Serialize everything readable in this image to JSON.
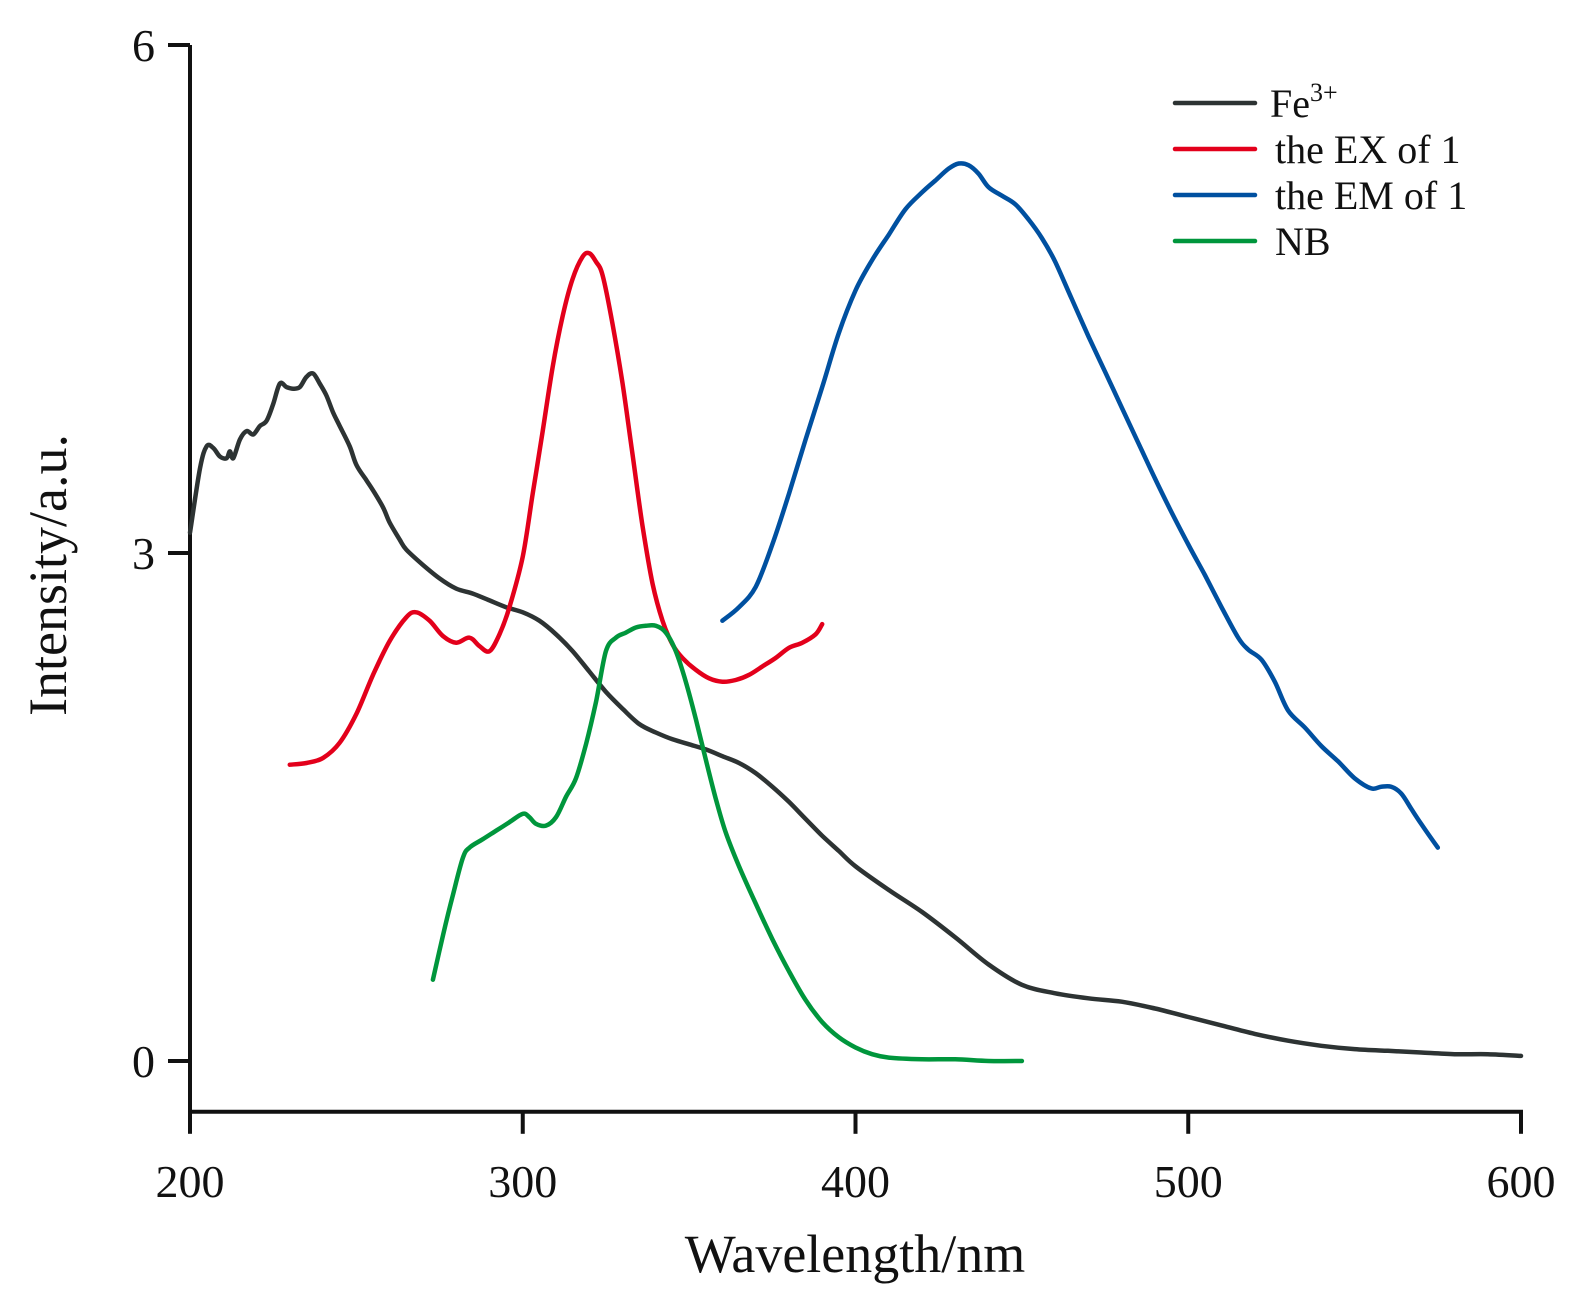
{
  "chart_data": {
    "type": "line",
    "title": "",
    "xlabel": "Wavelength/nm",
    "ylabel": "Intensity/a.u.",
    "xlim": [
      200,
      600
    ],
    "ylim": [
      -0.3,
      6
    ],
    "xticks": [
      200,
      300,
      400,
      500,
      600
    ],
    "xtick_labels": [
      "200",
      "300",
      "400",
      "500",
      "600"
    ],
    "yticks": [
      0,
      3,
      6
    ],
    "ytick_labels": [
      "0",
      "3",
      "6"
    ],
    "grid": false,
    "legend_position": "top-right",
    "series": [
      {
        "name": "Fe3+",
        "label_main": "Fe",
        "label_sup": "3+",
        "color": "#2d3333",
        "x": [
          200,
          203,
          205,
          207,
          209,
          211,
          212,
          213,
          215,
          217,
          219,
          221,
          223,
          225,
          227,
          229,
          231,
          233,
          235,
          237,
          239,
          241,
          243,
          245,
          248,
          250,
          253,
          255,
          258,
          260,
          263,
          265,
          270,
          275,
          280,
          285,
          290,
          295,
          300,
          305,
          310,
          315,
          320,
          325,
          330,
          335,
          340,
          345,
          350,
          355,
          360,
          365,
          370,
          375,
          380,
          385,
          390,
          395,
          400,
          410,
          420,
          430,
          440,
          450,
          460,
          470,
          480,
          490,
          500,
          510,
          520,
          530,
          540,
          550,
          560,
          570,
          580,
          590,
          600
        ],
        "y": [
          3.12,
          3.5,
          3.63,
          3.62,
          3.57,
          3.56,
          3.6,
          3.56,
          3.67,
          3.72,
          3.7,
          3.75,
          3.78,
          3.88,
          4.0,
          3.98,
          3.97,
          3.98,
          4.04,
          4.06,
          4.0,
          3.93,
          3.83,
          3.75,
          3.63,
          3.52,
          3.43,
          3.37,
          3.27,
          3.18,
          3.08,
          3.02,
          2.93,
          2.85,
          2.79,
          2.76,
          2.72,
          2.68,
          2.65,
          2.6,
          2.52,
          2.42,
          2.3,
          2.18,
          2.08,
          1.99,
          1.94,
          1.9,
          1.87,
          1.84,
          1.8,
          1.76,
          1.7,
          1.62,
          1.53,
          1.43,
          1.33,
          1.24,
          1.15,
          1.01,
          0.88,
          0.73,
          0.57,
          0.45,
          0.4,
          0.37,
          0.35,
          0.31,
          0.26,
          0.21,
          0.16,
          0.12,
          0.09,
          0.07,
          0.06,
          0.05,
          0.04,
          0.04,
          0.03
        ]
      },
      {
        "name": "the EX of 1",
        "color": "#e3001b",
        "x": [
          230,
          235,
          240,
          245,
          250,
          255,
          260,
          265,
          268,
          272,
          276,
          280,
          284,
          287,
          290,
          293,
          296,
          300,
          303,
          306,
          309,
          312,
          315,
          318,
          320,
          322,
          324,
          327,
          330,
          333,
          336,
          339,
          342,
          345,
          348,
          352,
          356,
          360,
          364,
          368,
          372,
          376,
          380,
          384,
          388,
          390
        ],
        "y": [
          1.75,
          1.76,
          1.79,
          1.88,
          2.05,
          2.28,
          2.48,
          2.62,
          2.65,
          2.6,
          2.51,
          2.47,
          2.5,
          2.45,
          2.42,
          2.52,
          2.68,
          2.98,
          3.35,
          3.72,
          4.1,
          4.4,
          4.62,
          4.75,
          4.77,
          4.72,
          4.64,
          4.35,
          4.0,
          3.58,
          3.16,
          2.82,
          2.6,
          2.46,
          2.38,
          2.31,
          2.26,
          2.24,
          2.25,
          2.28,
          2.33,
          2.38,
          2.44,
          2.47,
          2.52,
          2.58
        ]
      },
      {
        "name": "the EM of 1",
        "color": "#0050a0",
        "x": [
          360,
          365,
          370,
          375,
          380,
          385,
          390,
          395,
          400,
          405,
          410,
          415,
          420,
          424,
          428,
          431,
          434,
          437,
          440,
          444,
          448,
          452,
          456,
          460,
          465,
          470,
          475,
          480,
          485,
          490,
          495,
          500,
          505,
          510,
          515,
          518,
          522,
          526,
          530,
          535,
          540,
          545,
          550,
          555,
          558,
          561,
          564,
          567,
          570,
          575
        ],
        "y": [
          2.6,
          2.68,
          2.8,
          3.05,
          3.35,
          3.67,
          3.98,
          4.3,
          4.55,
          4.73,
          4.88,
          5.03,
          5.13,
          5.2,
          5.27,
          5.3,
          5.29,
          5.24,
          5.16,
          5.11,
          5.06,
          4.97,
          4.86,
          4.72,
          4.5,
          4.28,
          4.07,
          3.86,
          3.65,
          3.44,
          3.24,
          3.05,
          2.87,
          2.68,
          2.5,
          2.43,
          2.37,
          2.24,
          2.07,
          1.97,
          1.86,
          1.77,
          1.67,
          1.61,
          1.62,
          1.62,
          1.58,
          1.49,
          1.4,
          1.26
        ]
      },
      {
        "name": "NB",
        "color": "#00963c",
        "x": [
          273,
          276,
          279,
          282,
          284,
          288,
          292,
          296,
          300,
          302,
          304,
          307,
          310,
          313,
          316,
          319,
          322,
          325,
          328,
          331,
          334,
          337,
          340,
          343,
          346,
          349,
          352,
          355,
          358,
          361,
          365,
          370,
          375,
          380,
          385,
          390,
          395,
          400,
          405,
          410,
          420,
          430,
          440,
          450
        ],
        "y": [
          0.48,
          0.74,
          0.98,
          1.2,
          1.26,
          1.31,
          1.36,
          1.41,
          1.46,
          1.44,
          1.4,
          1.39,
          1.44,
          1.56,
          1.67,
          1.87,
          2.12,
          2.42,
          2.5,
          2.53,
          2.56,
          2.57,
          2.57,
          2.53,
          2.42,
          2.24,
          2.02,
          1.78,
          1.55,
          1.35,
          1.15,
          0.93,
          0.72,
          0.53,
          0.36,
          0.23,
          0.14,
          0.08,
          0.04,
          0.02,
          0.01,
          0.01,
          0.0,
          0.0
        ]
      }
    ]
  }
}
